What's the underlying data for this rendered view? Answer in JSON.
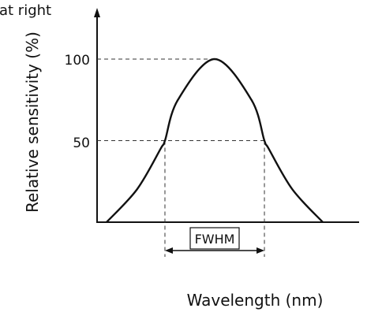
{
  "chart_data": {
    "type": "line",
    "corner_text": "at right",
    "ylabel": "Relative sensitivity (%)",
    "xlabel": "Wavelength (nm)",
    "y_ticks": [
      {
        "value": 100,
        "label": "100"
      },
      {
        "value": 50,
        "label": "50"
      }
    ],
    "ylim": [
      0,
      130
    ],
    "x_ticks": [],
    "grid": false,
    "series": [
      {
        "values": [
          {
            "x": 0.0,
            "y": 0
          },
          {
            "x": 0.14,
            "y": 20
          },
          {
            "x": 0.25,
            "y": 45
          },
          {
            "x": 0.27,
            "y": 50
          },
          {
            "x": 0.33,
            "y": 75
          },
          {
            "x": 0.5,
            "y": 100
          },
          {
            "x": 0.67,
            "y": 75
          },
          {
            "x": 0.73,
            "y": 50
          },
          {
            "x": 0.75,
            "y": 45
          },
          {
            "x": 0.86,
            "y": 20
          },
          {
            "x": 1.0,
            "y": 0
          }
        ]
      }
    ],
    "annotations": [
      {
        "text": "FWHM",
        "from_x": 0.27,
        "to_x": 0.73,
        "level": 50
      }
    ],
    "axis_line_color": "#111111",
    "curve_color": "#111111",
    "guide_color": "#333333"
  }
}
